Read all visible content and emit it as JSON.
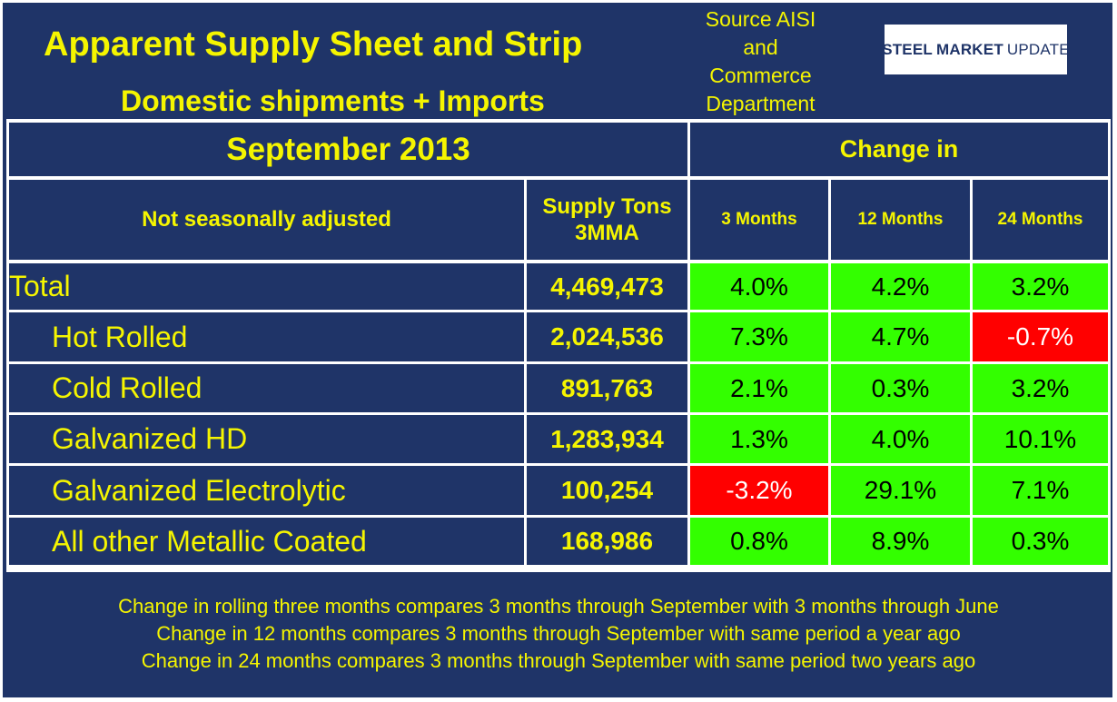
{
  "header": {
    "title": "Apparent Supply Sheet and Strip",
    "subtitle": "Domestic shipments + Imports",
    "source_lines": [
      "Source AISI",
      "and",
      "Commerce",
      "Department"
    ],
    "logo": {
      "steel": "STEEL",
      "market": "MARKET",
      "update": "UPDATE"
    }
  },
  "period": "September 2013",
  "change_header": "Change in",
  "columns": {
    "label": "Not seasonally adjusted",
    "supply": [
      "Supply Tons",
      "3MMA"
    ],
    "m3": "3 Months",
    "m12": "12 Months",
    "m24": "24 Months"
  },
  "rows": [
    {
      "label": "Total",
      "supply": "4,469,473",
      "m3": "4.0%",
      "m12": "4.2%",
      "m24": "3.2%"
    },
    {
      "label": "Hot Rolled",
      "supply": "2,024,536",
      "m3": "7.3%",
      "m12": "4.7%",
      "m24": "-0.7%"
    },
    {
      "label": "Cold Rolled",
      "supply": "891,763",
      "m3": "2.1%",
      "m12": "0.3%",
      "m24": "3.2%"
    },
    {
      "label": "Galvanized HD",
      "supply": "1,283,934",
      "m3": "1.3%",
      "m12": "4.0%",
      "m24": "10.1%"
    },
    {
      "label": "Galvanized Electrolytic",
      "supply": "100,254",
      "m3": "-3.2%",
      "m12": "29.1%",
      "m24": "7.1%"
    },
    {
      "label": "All other Metallic Coated",
      "supply": "168,986",
      "m3": "0.8%",
      "m12": "8.9%",
      "m24": "0.3%"
    }
  ],
  "notes": [
    "Change in rolling three months compares 3 months through September with 3 months through June",
    "Change in 12 months compares 3 months through September with same period a year ago",
    "Change in 24 months compares 3 months through September with same period two years ago"
  ],
  "colors": {
    "navy": "#1f3468",
    "yellow": "#f5f500",
    "green": "#33ff00",
    "red": "#ff0000"
  }
}
